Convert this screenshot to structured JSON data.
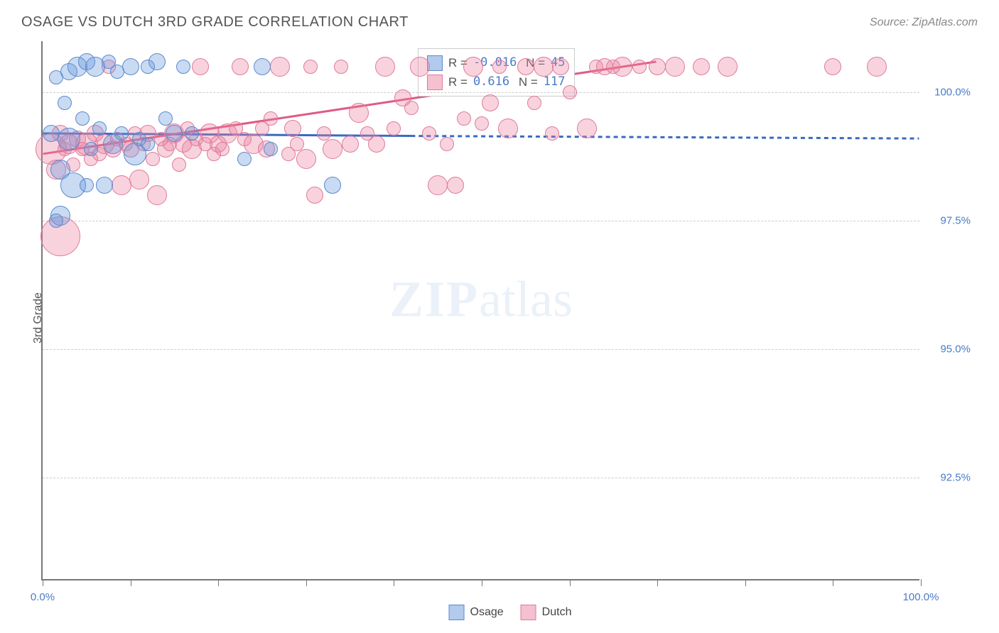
{
  "header": {
    "title": "OSAGE VS DUTCH 3RD GRADE CORRELATION CHART",
    "source": "Source: ZipAtlas.com"
  },
  "chart": {
    "type": "scatter",
    "ylabel": "3rd Grade",
    "xlim": [
      0,
      100
    ],
    "ylim": [
      90.5,
      101
    ],
    "xticks": [
      0,
      10,
      20,
      30,
      40,
      50,
      60,
      70,
      80,
      90,
      100
    ],
    "xtick_labels": {
      "0": "0.0%",
      "100": "100.0%"
    },
    "yticks": [
      92.5,
      95.0,
      97.5,
      100.0
    ],
    "ytick_labels": [
      "92.5%",
      "95.0%",
      "97.5%",
      "100.0%"
    ],
    "grid_color": "#cccccc",
    "background_color": "#ffffff",
    "watermark": {
      "bold": "ZIP",
      "light": "atlas"
    },
    "series": {
      "osage": {
        "label": "Osage",
        "color_fill": "rgba(100,150,220,0.35)",
        "color_stroke": "#5a8acc",
        "R": "-0.016",
        "N": "45",
        "trend": {
          "x1": 0,
          "y1": 99.2,
          "x2": 42,
          "y2": 99.15,
          "solid": true,
          "dash_x2": 100,
          "dash_y2": 99.1
        },
        "points": [
          {
            "x": 1,
            "y": 99.2,
            "r": 12
          },
          {
            "x": 1.5,
            "y": 100.3,
            "r": 10
          },
          {
            "x": 2,
            "y": 98.5,
            "r": 14
          },
          {
            "x": 2.5,
            "y": 99.8,
            "r": 10
          },
          {
            "x": 3,
            "y": 100.4,
            "r": 12
          },
          {
            "x": 3,
            "y": 99.1,
            "r": 16
          },
          {
            "x": 3.5,
            "y": 98.2,
            "r": 18
          },
          {
            "x": 4,
            "y": 100.5,
            "r": 14
          },
          {
            "x": 4.5,
            "y": 99.5,
            "r": 10
          },
          {
            "x": 5,
            "y": 100.6,
            "r": 12
          },
          {
            "x": 5.5,
            "y": 98.9,
            "r": 10
          },
          {
            "x": 6,
            "y": 100.5,
            "r": 14
          },
          {
            "x": 6.5,
            "y": 99.3,
            "r": 10
          },
          {
            "x": 7,
            "y": 98.2,
            "r": 12
          },
          {
            "x": 7.5,
            "y": 100.6,
            "r": 10
          },
          {
            "x": 8,
            "y": 99.0,
            "r": 14
          },
          {
            "x": 8.5,
            "y": 100.4,
            "r": 10
          },
          {
            "x": 9,
            "y": 99.2,
            "r": 10
          },
          {
            "x": 10,
            "y": 100.5,
            "r": 12
          },
          {
            "x": 10.5,
            "y": 98.8,
            "r": 16
          },
          {
            "x": 11,
            "y": 99.1,
            "r": 10
          },
          {
            "x": 12,
            "y": 100.5,
            "r": 10
          },
          {
            "x": 12,
            "y": 99.0,
            "r": 10
          },
          {
            "x": 13,
            "y": 100.6,
            "r": 12
          },
          {
            "x": 14,
            "y": 99.5,
            "r": 10
          },
          {
            "x": 15,
            "y": 99.2,
            "r": 12
          },
          {
            "x": 16,
            "y": 100.5,
            "r": 10
          },
          {
            "x": 17,
            "y": 99.2,
            "r": 10
          },
          {
            "x": 23,
            "y": 98.7,
            "r": 10
          },
          {
            "x": 25,
            "y": 100.5,
            "r": 12
          },
          {
            "x": 26,
            "y": 98.9,
            "r": 10
          },
          {
            "x": 33,
            "y": 98.2,
            "r": 12
          },
          {
            "x": 2,
            "y": 97.6,
            "r": 14
          },
          {
            "x": 1.5,
            "y": 97.5,
            "r": 10
          },
          {
            "x": 5,
            "y": 98.2,
            "r": 10
          }
        ]
      },
      "dutch": {
        "label": "Dutch",
        "color_fill": "rgba(235,130,160,0.35)",
        "color_stroke": "#e07a9a",
        "R": "0.616",
        "N": "117",
        "trend": {
          "x1": 0,
          "y1": 98.8,
          "x2": 70,
          "y2": 100.6,
          "solid": true,
          "dash_x2": 100,
          "dash_y2": 101
        },
        "points": [
          {
            "x": 1,
            "y": 98.9,
            "r": 22
          },
          {
            "x": 1.5,
            "y": 98.5,
            "r": 14
          },
          {
            "x": 2,
            "y": 99.2,
            "r": 12
          },
          {
            "x": 2,
            "y": 97.2,
            "r": 28
          },
          {
            "x": 2.5,
            "y": 98.9,
            "r": 10
          },
          {
            "x": 3,
            "y": 99.0,
            "r": 14
          },
          {
            "x": 3.5,
            "y": 98.6,
            "r": 10
          },
          {
            "x": 4,
            "y": 99.1,
            "r": 12
          },
          {
            "x": 4.5,
            "y": 98.9,
            "r": 10
          },
          {
            "x": 5,
            "y": 99.0,
            "r": 16
          },
          {
            "x": 5.5,
            "y": 98.7,
            "r": 10
          },
          {
            "x": 6,
            "y": 99.2,
            "r": 12
          },
          {
            "x": 6.5,
            "y": 98.8,
            "r": 10
          },
          {
            "x": 7,
            "y": 99.0,
            "r": 14
          },
          {
            "x": 7.5,
            "y": 100.5,
            "r": 10
          },
          {
            "x": 8,
            "y": 98.9,
            "r": 12
          },
          {
            "x": 8.5,
            "y": 99.1,
            "r": 10
          },
          {
            "x": 9,
            "y": 98.2,
            "r": 14
          },
          {
            "x": 9.5,
            "y": 99.0,
            "r": 10
          },
          {
            "x": 10,
            "y": 98.9,
            "r": 12
          },
          {
            "x": 10.5,
            "y": 99.2,
            "r": 10
          },
          {
            "x": 11,
            "y": 98.3,
            "r": 14
          },
          {
            "x": 11.5,
            "y": 99.0,
            "r": 10
          },
          {
            "x": 12,
            "y": 99.2,
            "r": 12
          },
          {
            "x": 12.5,
            "y": 98.7,
            "r": 10
          },
          {
            "x": 13,
            "y": 98.0,
            "r": 14
          },
          {
            "x": 13.5,
            "y": 99.1,
            "r": 10
          },
          {
            "x": 14,
            "y": 98.9,
            "r": 12
          },
          {
            "x": 14.5,
            "y": 99.0,
            "r": 10
          },
          {
            "x": 15,
            "y": 99.2,
            "r": 14
          },
          {
            "x": 15.5,
            "y": 98.6,
            "r": 10
          },
          {
            "x": 16,
            "y": 99.0,
            "r": 12
          },
          {
            "x": 16.5,
            "y": 99.3,
            "r": 10
          },
          {
            "x": 17,
            "y": 98.9,
            "r": 14
          },
          {
            "x": 17.5,
            "y": 99.1,
            "r": 10
          },
          {
            "x": 18,
            "y": 100.5,
            "r": 12
          },
          {
            "x": 18.5,
            "y": 99.0,
            "r": 10
          },
          {
            "x": 19,
            "y": 99.2,
            "r": 14
          },
          {
            "x": 19.5,
            "y": 98.8,
            "r": 10
          },
          {
            "x": 20,
            "y": 99.0,
            "r": 12
          },
          {
            "x": 20.5,
            "y": 98.9,
            "r": 10
          },
          {
            "x": 21,
            "y": 99.2,
            "r": 14
          },
          {
            "x": 22,
            "y": 99.3,
            "r": 10
          },
          {
            "x": 22.5,
            "y": 100.5,
            "r": 12
          },
          {
            "x": 23,
            "y": 99.1,
            "r": 10
          },
          {
            "x": 24,
            "y": 99.0,
            "r": 14
          },
          {
            "x": 25,
            "y": 99.3,
            "r": 10
          },
          {
            "x": 25.5,
            "y": 98.9,
            "r": 12
          },
          {
            "x": 26,
            "y": 99.5,
            "r": 10
          },
          {
            "x": 27,
            "y": 100.5,
            "r": 14
          },
          {
            "x": 28,
            "y": 98.8,
            "r": 10
          },
          {
            "x": 28.5,
            "y": 99.3,
            "r": 12
          },
          {
            "x": 29,
            "y": 99.0,
            "r": 10
          },
          {
            "x": 30,
            "y": 98.7,
            "r": 14
          },
          {
            "x": 30.5,
            "y": 100.5,
            "r": 10
          },
          {
            "x": 31,
            "y": 98.0,
            "r": 12
          },
          {
            "x": 32,
            "y": 99.2,
            "r": 10
          },
          {
            "x": 33,
            "y": 98.9,
            "r": 14
          },
          {
            "x": 34,
            "y": 100.5,
            "r": 10
          },
          {
            "x": 35,
            "y": 99.0,
            "r": 12
          },
          {
            "x": 36,
            "y": 99.6,
            "r": 14
          },
          {
            "x": 37,
            "y": 99.2,
            "r": 10
          },
          {
            "x": 38,
            "y": 99.0,
            "r": 12
          },
          {
            "x": 39,
            "y": 100.5,
            "r": 14
          },
          {
            "x": 40,
            "y": 99.3,
            "r": 10
          },
          {
            "x": 41,
            "y": 99.9,
            "r": 12
          },
          {
            "x": 42,
            "y": 99.7,
            "r": 10
          },
          {
            "x": 43,
            "y": 100.5,
            "r": 14
          },
          {
            "x": 44,
            "y": 99.2,
            "r": 10
          },
          {
            "x": 45,
            "y": 98.2,
            "r": 14
          },
          {
            "x": 46,
            "y": 99.0,
            "r": 10
          },
          {
            "x": 47,
            "y": 98.2,
            "r": 12
          },
          {
            "x": 48,
            "y": 99.5,
            "r": 10
          },
          {
            "x": 49,
            "y": 100.5,
            "r": 14
          },
          {
            "x": 50,
            "y": 99.4,
            "r": 10
          },
          {
            "x": 51,
            "y": 99.8,
            "r": 12
          },
          {
            "x": 52,
            "y": 100.5,
            "r": 10
          },
          {
            "x": 53,
            "y": 99.3,
            "r": 14
          },
          {
            "x": 55,
            "y": 100.5,
            "r": 12
          },
          {
            "x": 56,
            "y": 99.8,
            "r": 10
          },
          {
            "x": 57,
            "y": 100.5,
            "r": 14
          },
          {
            "x": 58,
            "y": 99.2,
            "r": 10
          },
          {
            "x": 59,
            "y": 100.5,
            "r": 12
          },
          {
            "x": 60,
            "y": 100.0,
            "r": 10
          },
          {
            "x": 62,
            "y": 99.3,
            "r": 14
          },
          {
            "x": 63,
            "y": 100.5,
            "r": 10
          },
          {
            "x": 64,
            "y": 100.5,
            "r": 12
          },
          {
            "x": 65,
            "y": 100.5,
            "r": 10
          },
          {
            "x": 66,
            "y": 100.5,
            "r": 14
          },
          {
            "x": 68,
            "y": 100.5,
            "r": 10
          },
          {
            "x": 70,
            "y": 100.5,
            "r": 12
          },
          {
            "x": 72,
            "y": 100.5,
            "r": 14
          },
          {
            "x": 75,
            "y": 100.5,
            "r": 12
          },
          {
            "x": 78,
            "y": 100.5,
            "r": 14
          },
          {
            "x": 90,
            "y": 100.5,
            "r": 12
          },
          {
            "x": 95,
            "y": 100.5,
            "r": 14
          }
        ]
      }
    },
    "legend_bottom": [
      {
        "key": "osage",
        "label": "Osage"
      },
      {
        "key": "dutch",
        "label": "Dutch"
      }
    ]
  }
}
